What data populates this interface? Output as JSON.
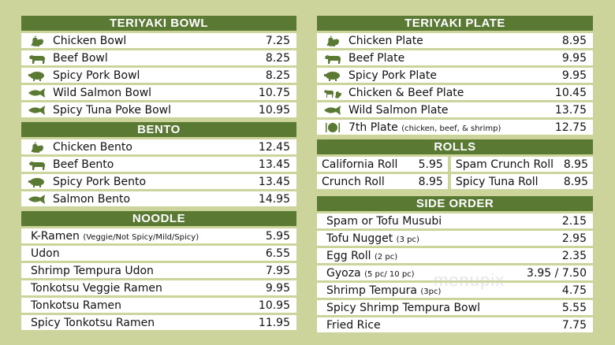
{
  "teriyaki_bowl": {
    "title": "TERIYAKI BOWL",
    "items": [
      {
        "icon": "chicken-icon",
        "name": "Chicken Bowl",
        "price": "7.25"
      },
      {
        "icon": "cow-icon",
        "name": "Beef Bowl",
        "price": "8.25"
      },
      {
        "icon": "pig-icon",
        "name": "Spicy Pork Bowl",
        "price": "8.25"
      },
      {
        "icon": "fish-icon",
        "name": "Wild Salmon Bowl",
        "price": "10.75"
      },
      {
        "icon": "fish-icon",
        "name": "Spicy Tuna Poke Bowl",
        "price": "10.95"
      }
    ]
  },
  "bento": {
    "title": "BENTO",
    "items": [
      {
        "icon": "chicken-icon",
        "name": "Chicken Bento",
        "price": "12.45"
      },
      {
        "icon": "cow-icon",
        "name": "Beef Bento",
        "price": "13.45"
      },
      {
        "icon": "pig-icon",
        "name": "Spicy Pork Bento",
        "price": "13.45"
      },
      {
        "icon": "fish-icon",
        "name": "Salmon Bento",
        "price": "14.95"
      }
    ]
  },
  "noodle": {
    "title": "NOODLE",
    "items": [
      {
        "name": "K-Ramen",
        "sub": "(Veggie/Not Spicy/Mild/Spicy)",
        "price": "5.95"
      },
      {
        "name": "Udon",
        "price": "6.55"
      },
      {
        "name": "Shrimp Tempura Udon",
        "price": "7.95"
      },
      {
        "name": "Tonkotsu Veggie Ramen",
        "price": "9.95"
      },
      {
        "name": "Tonkotsu Ramen",
        "price": "10.95"
      },
      {
        "name": "Spicy Tonkotsu Ramen",
        "price": "11.95"
      }
    ]
  },
  "teriyaki_plate": {
    "title": "TERIYAKI PLATE",
    "items": [
      {
        "icon": "chicken-icon",
        "name": "Chicken Plate",
        "price": "8.95"
      },
      {
        "icon": "cow-icon",
        "name": "Beef Plate",
        "price": "9.95"
      },
      {
        "icon": "pig-icon",
        "name": "Spicy Pork Plate",
        "price": "9.95"
      },
      {
        "icon": "chicken-cow-icon",
        "name": "Chicken & Beef Plate",
        "price": "10.45"
      },
      {
        "icon": "fish-icon",
        "name": "Wild Salmon Plate",
        "price": "13.75"
      },
      {
        "icon": "plate-icon",
        "name": "7th Plate",
        "sub": "(chicken, beef, & shrimp)",
        "price": "12.75"
      }
    ]
  },
  "rolls": {
    "title": "ROLLS",
    "items": [
      {
        "name": "California Roll",
        "price": "5.95"
      },
      {
        "name": "Spam Crunch Roll",
        "price": "8.95"
      },
      {
        "name": "Crunch Roll",
        "price": "8.95"
      },
      {
        "name": "Spicy Tuna Roll",
        "price": "8.95"
      }
    ]
  },
  "side_order": {
    "title": "SIDE ORDER",
    "items": [
      {
        "name": "Spam or Tofu Musubi",
        "price": "2.15"
      },
      {
        "name": "Tofu Nugget",
        "sub": "(3 pc)",
        "price": "2.95"
      },
      {
        "name": "Egg Roll",
        "sub": "(2 pc)",
        "price": "2.35"
      },
      {
        "name": "Gyoza",
        "sub": "(5 pc/ 10 pc)",
        "price": "3.95 / 7.50"
      },
      {
        "name": "Shrimp Tempura",
        "sub": "(3pc)",
        "price": "4.75"
      },
      {
        "name": "Spicy Shrimp Tempura Bowl",
        "price": "5.55"
      },
      {
        "name": "Fried Rice",
        "price": "7.75"
      }
    ]
  },
  "watermark": "menupix",
  "colors": {
    "background": "#cdd49b",
    "header": "#5a7a34",
    "row": "#ffffff",
    "icon": "#5a7a34"
  }
}
